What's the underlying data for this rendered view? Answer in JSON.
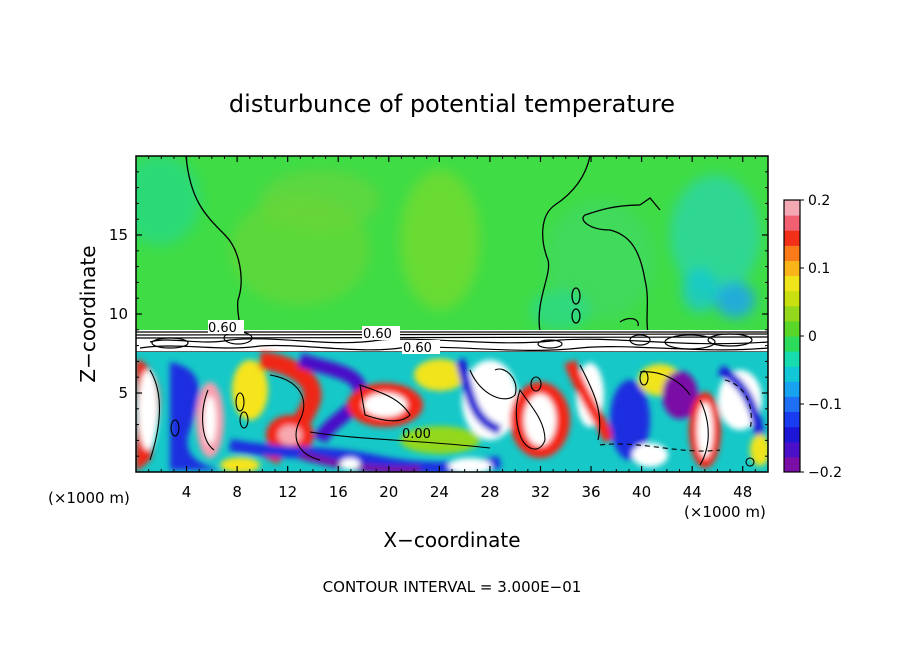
{
  "chart_data": {
    "type": "heatmap",
    "title": "disturbunce of potential temperature",
    "xlabel": "X−coordinate",
    "ylabel": "Z−coordinate",
    "x_unit_label": "(×1000 m)",
    "x_unit_label_right": "(×1000 m)",
    "footer": "CONTOUR INTERVAL = 3.000E−01",
    "xlim": [
      0,
      50
    ],
    "ylim": [
      0,
      20
    ],
    "x_ticks": [
      4,
      8,
      12,
      16,
      20,
      24,
      28,
      32,
      36,
      40,
      44,
      48
    ],
    "y_ticks": [
      5,
      10,
      15
    ],
    "colorbar": {
      "range": [
        -0.2,
        0.2
      ],
      "tick_labels": [
        "0.2",
        "0.1",
        "0",
        "−0.1",
        "−0.2"
      ],
      "tick_values": [
        0.2,
        0.1,
        0,
        -0.1,
        -0.2
      ],
      "colors": [
        "#7a0ea6",
        "#4b0fc8",
        "#1e16d6",
        "#1a3cf0",
        "#1f6ff5",
        "#17a3f0",
        "#12c8d8",
        "#16dcb0",
        "#2bdc5a",
        "#5ad628",
        "#93d81c",
        "#c8e010",
        "#f0e41a",
        "#f8b418",
        "#f87a18",
        "#f23018",
        "#f06070",
        "#f4a8b4"
      ]
    },
    "contour_labels": [
      "0.60",
      "0.60",
      "0.60",
      "0.00"
    ],
    "regions": [
      {
        "name": "upper layer (z > 9)",
        "disturbance": "near 0 (green), slightly negative (cyan) near x=44–48"
      },
      {
        "name": "inversion layer (z ≈ 8–9)",
        "disturbance": "large positive, saturated (white), dense contours"
      },
      {
        "name": "lower layer (z < 8)",
        "disturbance": "turbulent mix from −0.2 to 0.2 and beyond"
      }
    ]
  }
}
